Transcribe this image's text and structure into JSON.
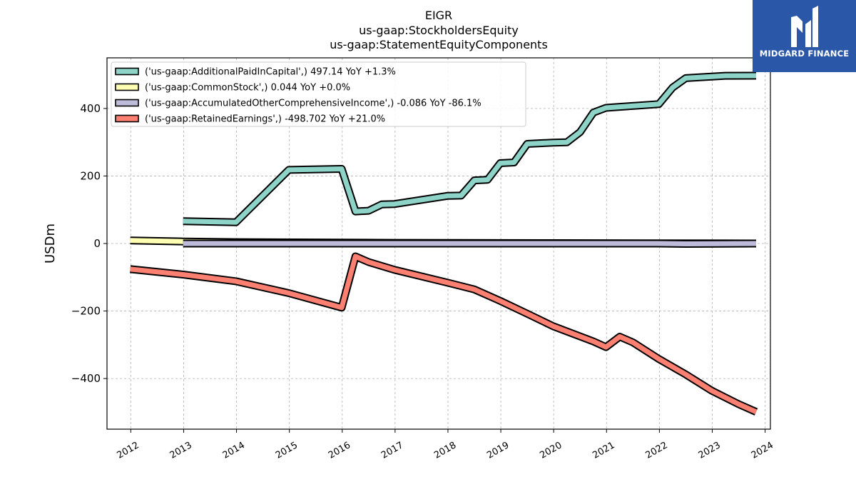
{
  "chart_data": {
    "type": "line",
    "title_lines": [
      "EIGR",
      "us-gaap:StockholdersEquity",
      "us-gaap:StatementEquityComponents"
    ],
    "ylabel": "USDm",
    "xlabel": "",
    "ylim": [
      -550,
      550
    ],
    "xlim": [
      2011.55,
      2024.1
    ],
    "y_ticks": [
      -400,
      -200,
      0,
      200,
      400
    ],
    "y_tick_labels": [
      "−400",
      "−200",
      "0",
      "200",
      "400"
    ],
    "x_ticks": [
      2012,
      2013,
      2014,
      2015,
      2016,
      2017,
      2018,
      2019,
      2020,
      2021,
      2022,
      2023,
      2024
    ],
    "x_tick_labels": [
      "2012",
      "2013",
      "2014",
      "2015",
      "2016",
      "2017",
      "2018",
      "2019",
      "2020",
      "2021",
      "2022",
      "2023",
      "2024"
    ],
    "grid": true,
    "legend_position": "upper-left",
    "series": [
      {
        "name": "('us-gaap:AdditionalPaidInCapital',) 497.14 YoY +1.3%",
        "color": "#8dd3c7",
        "points": [
          [
            2012.99,
            66
          ],
          [
            2013.99,
            63
          ],
          [
            2014.99,
            218
          ],
          [
            2015.99,
            221
          ],
          [
            2016.25,
            95
          ],
          [
            2016.5,
            97
          ],
          [
            2016.75,
            116
          ],
          [
            2016.99,
            117
          ],
          [
            2017.99,
            141
          ],
          [
            2018.25,
            142
          ],
          [
            2018.5,
            187
          ],
          [
            2018.75,
            189
          ],
          [
            2018.99,
            238
          ],
          [
            2019.25,
            240
          ],
          [
            2019.5,
            295
          ],
          [
            2019.99,
            299
          ],
          [
            2020.25,
            300
          ],
          [
            2020.5,
            330
          ],
          [
            2020.75,
            388
          ],
          [
            2020.99,
            402
          ],
          [
            2021.99,
            413
          ],
          [
            2022.25,
            462
          ],
          [
            2022.5,
            490
          ],
          [
            2023.25,
            497
          ],
          [
            2023.83,
            497.14
          ]
        ]
      },
      {
        "name": "('us-gaap:CommonStock',) 0.044 YoY +0.0%",
        "color": "#ffffb3",
        "points": [
          [
            2011.99,
            9
          ],
          [
            2012.99,
            6
          ],
          [
            2013.99,
            4
          ],
          [
            2016.99,
            2
          ],
          [
            2019.99,
            1
          ],
          [
            2023.83,
            0.044
          ]
        ]
      },
      {
        "name": "('us-gaap:AccumulatedOtherComprehensiveIncome',) -0.086 YoY -86.1%",
        "color": "#bebada",
        "points": [
          [
            2012.99,
            0
          ],
          [
            2016.99,
            0
          ],
          [
            2020.99,
            0
          ],
          [
            2021.99,
            0
          ],
          [
            2022.5,
            -1
          ],
          [
            2023.83,
            -0.086
          ]
        ]
      },
      {
        "name": "('us-gaap:RetainedEarnings',) -498.702 YoY +21.0%",
        "color": "#fb8072",
        "points": [
          [
            2011.99,
            -76
          ],
          [
            2012.99,
            -92
          ],
          [
            2013.99,
            -112
          ],
          [
            2014.99,
            -147
          ],
          [
            2015.99,
            -190
          ],
          [
            2016.25,
            -38
          ],
          [
            2016.5,
            -55
          ],
          [
            2016.99,
            -78
          ],
          [
            2017.99,
            -116
          ],
          [
            2018.5,
            -136
          ],
          [
            2018.99,
            -170
          ],
          [
            2019.5,
            -208
          ],
          [
            2019.99,
            -245
          ],
          [
            2020.75,
            -290
          ],
          [
            2020.99,
            -307
          ],
          [
            2021.25,
            -276
          ],
          [
            2021.5,
            -293
          ],
          [
            2021.99,
            -342
          ],
          [
            2022.5,
            -388
          ],
          [
            2022.99,
            -436
          ],
          [
            2023.5,
            -476
          ],
          [
            2023.83,
            -498.702
          ]
        ]
      }
    ]
  },
  "logo": {
    "text": "MIDGARD FINANCE",
    "color": "#2b57a8"
  }
}
